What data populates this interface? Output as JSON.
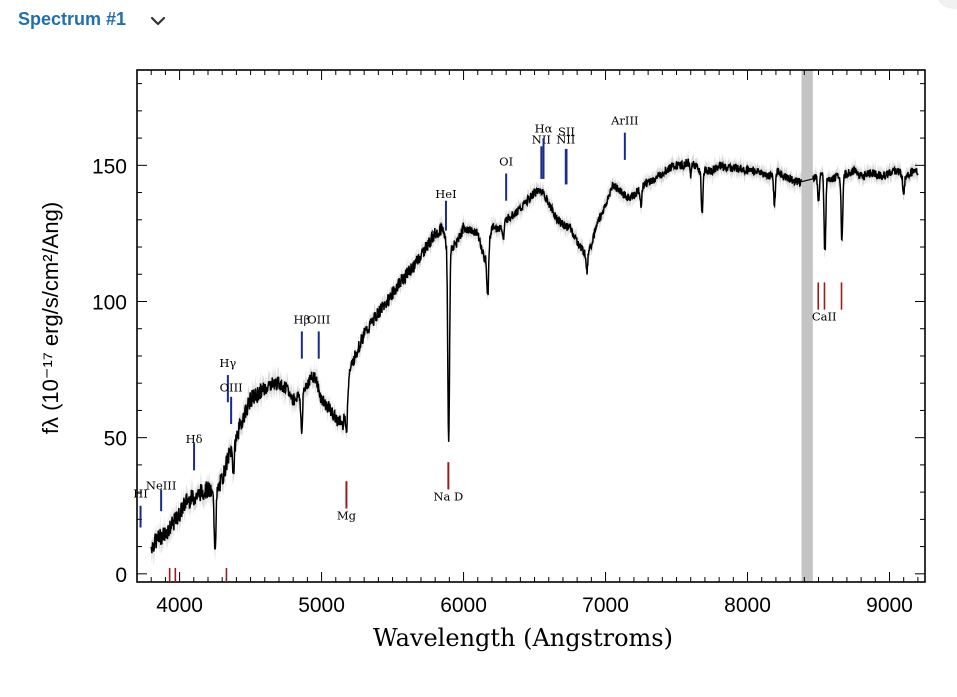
{
  "header": {
    "title": "Spectrum #1",
    "chevron_icon": "chevron-down-icon"
  },
  "chart_data": {
    "type": "line",
    "xlabel": "Wavelength (Angstroms)",
    "ylabel": "fλ (10⁻¹⁷ erg/s/cm²/Ang)",
    "xlim": [
      3700,
      9250
    ],
    "ylim": [
      -3,
      185
    ],
    "x_ticks": [
      4000,
      5000,
      6000,
      7000,
      8000,
      9000
    ],
    "y_ticks": [
      0,
      50,
      100,
      150
    ],
    "grid": false,
    "masked_band": [
      8380,
      8460
    ],
    "series_color": "#000000",
    "noise_color": "#c8c8c8",
    "spectrum": {
      "x": [
        3800,
        3850,
        3900,
        3950,
        4000,
        4050,
        4100,
        4150,
        4200,
        4250,
        4300,
        4350,
        4400,
        4450,
        4500,
        4550,
        4600,
        4650,
        4700,
        4750,
        4800,
        4850,
        4900,
        4950,
        5000,
        5050,
        5100,
        5150,
        5200,
        5250,
        5300,
        5350,
        5400,
        5450,
        5500,
        5550,
        5600,
        5650,
        5700,
        5750,
        5800,
        5850,
        5900,
        5950,
        6000,
        6050,
        6100,
        6150,
        6200,
        6250,
        6300,
        6350,
        6400,
        6450,
        6500,
        6550,
        6600,
        6650,
        6700,
        6750,
        6800,
        6850,
        6900,
        6950,
        7000,
        7050,
        7100,
        7150,
        7200,
        7250,
        7300,
        7350,
        7400,
        7450,
        7500,
        7550,
        7600,
        7650,
        7700,
        7750,
        7800,
        7850,
        7900,
        7950,
        8000,
        8050,
        8100,
        8150,
        8200,
        8250,
        8300,
        8350,
        8380,
        8460,
        8500,
        8550,
        8600,
        8650,
        8700,
        8750,
        8800,
        8850,
        8900,
        8950,
        9000,
        9050,
        9100,
        9150,
        9200
      ],
      "y": [
        10,
        13,
        15,
        18,
        22,
        27,
        28,
        30,
        31,
        28,
        35,
        44,
        50,
        58,
        64,
        66,
        68,
        70,
        70,
        68,
        64,
        66,
        70,
        73,
        64,
        61,
        57,
        55,
        75,
        82,
        88,
        92,
        96,
        99,
        103,
        107,
        110,
        113,
        117,
        121,
        125,
        127,
        118,
        122,
        127,
        126,
        125,
        115,
        127,
        127,
        130,
        132,
        134,
        137,
        140,
        141,
        136,
        131,
        128,
        127,
        122,
        118,
        121,
        130,
        135,
        143,
        141,
        138,
        139,
        142,
        144,
        145,
        147,
        149,
        150,
        150,
        152,
        149,
        148,
        148,
        150,
        149,
        149,
        149,
        148,
        148,
        147,
        146,
        148,
        146,
        145,
        144,
        144,
        145,
        147,
        146,
        145,
        146,
        147,
        148,
        146,
        147,
        147,
        146,
        147,
        148,
        146,
        147,
        148
      ]
    },
    "absorption_lines": [
      {
        "x": 4250,
        "depth": 18
      },
      {
        "x": 4380,
        "depth": 10
      },
      {
        "x": 4860,
        "depth": 15
      },
      {
        "x": 5175,
        "depth": 14
      },
      {
        "x": 5895,
        "depth": 70
      },
      {
        "x": 6170,
        "depth": 18
      },
      {
        "x": 6280,
        "depth": 6
      },
      {
        "x": 6870,
        "depth": 8
      },
      {
        "x": 7250,
        "depth": 6
      },
      {
        "x": 7600,
        "depth": 6
      },
      {
        "x": 7680,
        "depth": 16
      },
      {
        "x": 8190,
        "depth": 12
      },
      {
        "x": 8500,
        "depth": 10
      },
      {
        "x": 8545,
        "depth": 28
      },
      {
        "x": 8665,
        "depth": 24
      },
      {
        "x": 9100,
        "depth": 6
      }
    ],
    "emission_annotations": [
      {
        "label": "HI",
        "x": 3725,
        "tick_y0": 17,
        "tick_y1": 25,
        "label_y": 28
      },
      {
        "label": "NeIII",
        "x": 3870,
        "tick_y0": 23,
        "tick_y1": 31,
        "label_y": 31
      },
      {
        "label": "Hδ",
        "x": 4102,
        "tick_y0": 38,
        "tick_y1": 48,
        "label_y": 48
      },
      {
        "label": "Hγ",
        "x": 4340,
        "tick_y0": 63,
        "tick_y1": 73,
        "label_y": 76
      },
      {
        "label": "OIII",
        "x": 4363,
        "tick_y0": 55,
        "tick_y1": 65,
        "label_y": 67
      },
      {
        "label": "Hβ",
        "x": 4861,
        "tick_y0": 79,
        "tick_y1": 89,
        "label_y": 92
      },
      {
        "label": "OIII",
        "x": 4980,
        "tick_y0": 79,
        "tick_y1": 89,
        "label_y": 92
      },
      {
        "label": "HeI",
        "x": 5876,
        "tick_y0": 126,
        "tick_y1": 137,
        "label_y": 138
      },
      {
        "label": "OI",
        "x": 6300,
        "tick_y0": 137,
        "tick_y1": 147,
        "label_y": 150
      },
      {
        "label": "NII",
        "x": 6548,
        "tick_y0": 145,
        "tick_y1": 157,
        "label_y": 158
      },
      {
        "label": "Hα",
        "x": 6563,
        "tick_y0": 145,
        "tick_y1": 160,
        "label_y": 162
      },
      {
        "label": "NII",
        "x": 6720,
        "tick_y0": 143,
        "tick_y1": 156,
        "label_y": 158
      },
      {
        "label": "SII",
        "x": 6725,
        "tick_y0": 143,
        "tick_y1": 156,
        "label_y": 161
      },
      {
        "label": "ArIII",
        "x": 7136,
        "tick_y0": 152,
        "tick_y1": 162,
        "label_y": 165
      }
    ],
    "absorption_annotations": [
      {
        "label": "Mg",
        "x": 5175,
        "tick_y0": 24,
        "tick_y1": 34,
        "label_y": 20
      },
      {
        "label": "Na D",
        "x": 5893,
        "tick_y0": 31,
        "tick_y1": 41,
        "label_y": 27
      },
      {
        "label": "CaII",
        "x": 8540,
        "tick_y0": 97,
        "tick_y1": 107,
        "label_y": 93
      }
    ],
    "bottom_ticks_red": [
      3930,
      3970,
      4330
    ],
    "emission_color": "#1a2a8a",
    "absorption_color": "#9b1c1c"
  }
}
